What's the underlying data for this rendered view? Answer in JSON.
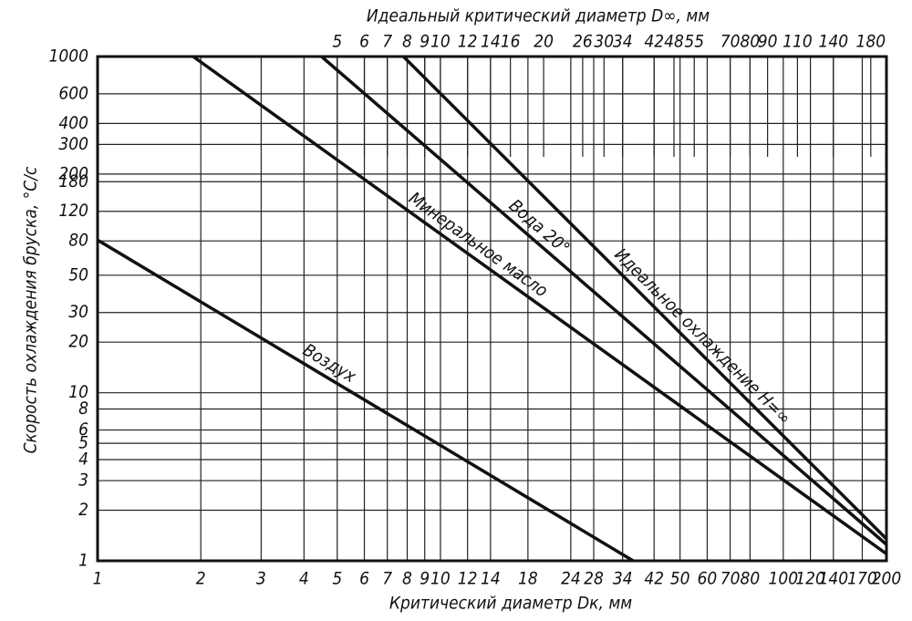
{
  "chart_data": {
    "type": "line",
    "title": "Идеальный  критический  диаметр D∞, мм",
    "x_label": "Критический  диаметр Dк, мм",
    "y_label": "Скорость охлаждения бруска, °С/с",
    "xscale": "log",
    "yscale": "log",
    "grid": true,
    "color": "#111111",
    "xlim": [
      1,
      200
    ],
    "ylim": [
      1,
      1000
    ],
    "xticks": [
      1,
      2,
      3,
      4,
      5,
      6,
      7,
      8,
      9,
      10,
      12,
      14,
      18,
      24,
      28,
      34,
      42,
      50,
      60,
      70,
      80,
      100,
      120,
      140,
      170,
      200
    ],
    "x2ticks": [
      5,
      6,
      7,
      8,
      9,
      10,
      12,
      14,
      16,
      20,
      26,
      30,
      34,
      42,
      48,
      55,
      70,
      80,
      90,
      110,
      140,
      180
    ],
    "yticks": [
      1,
      2,
      3,
      4,
      5,
      6,
      8,
      10,
      20,
      30,
      50,
      80,
      120,
      180,
      200,
      300,
      400,
      600,
      1000
    ],
    "series": [
      {
        "name": "Воздух",
        "color": "#111111",
        "x": [
          1,
          36.5
        ],
        "values": [
          81,
          1
        ]
      },
      {
        "name": "Минеральное масло",
        "color": "#111111",
        "x": [
          1.9,
          200
        ],
        "values": [
          1000,
          1.1
        ]
      },
      {
        "name": "Вода 20°",
        "color": "#111111",
        "x": [
          4.5,
          200
        ],
        "values": [
          1000,
          1.25
        ]
      },
      {
        "name": "Идеальное охлаждение H=∞",
        "color": "#111111",
        "x": [
          7.8,
          200
        ],
        "values": [
          1000,
          1.35
        ]
      }
    ]
  }
}
